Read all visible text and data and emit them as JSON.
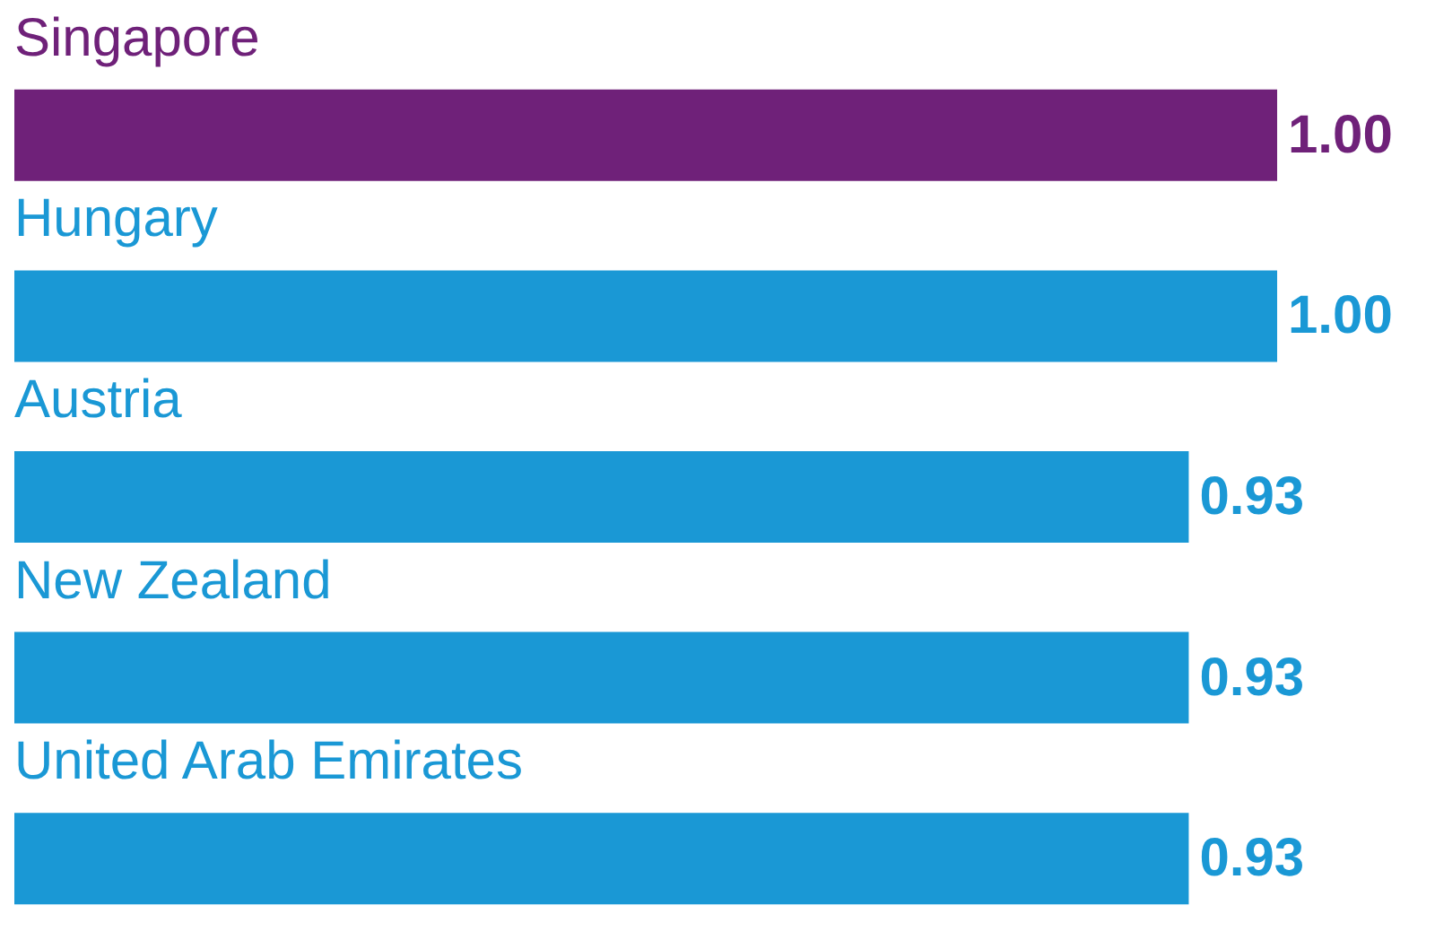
{
  "chart_data": {
    "type": "bar",
    "orientation": "horizontal",
    "categories": [
      "Singapore",
      "Hungary",
      "Austria",
      "New Zealand",
      "United Arab Emirates"
    ],
    "values": [
      1.0,
      1.0,
      0.93,
      0.93,
      0.93
    ],
    "colors": [
      "#6f2179",
      "#1a98d5",
      "#1a98d5",
      "#1a98d5",
      "#1a98d5"
    ],
    "value_labels": [
      "1.00",
      "1.00",
      "0.93",
      "0.93",
      "0.93"
    ]
  }
}
